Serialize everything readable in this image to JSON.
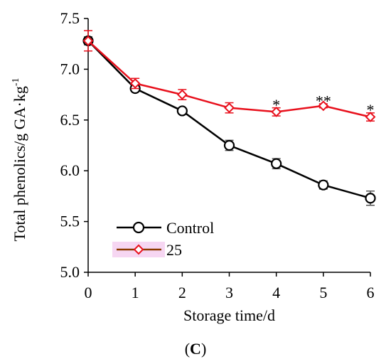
{
  "chart_data": {
    "type": "line",
    "xlabel": "Storage time/d",
    "ylabel_main": "Total phenolics/g GA·kg",
    "ylabel_sup": "-1",
    "xlim": [
      0,
      6
    ],
    "ylim": [
      5.0,
      7.5
    ],
    "x_ticks": [
      "0",
      "1",
      "2",
      "3",
      "4",
      "5",
      "6"
    ],
    "y_ticks": [
      "5.0",
      "5.5",
      "6.0",
      "6.5",
      "7.0",
      "7.5"
    ],
    "x": [
      0,
      1,
      2,
      3,
      4,
      5,
      6
    ],
    "series": [
      {
        "name": "Control",
        "color": "#000000",
        "marker": "circle",
        "values": [
          7.28,
          6.81,
          6.59,
          6.25,
          6.07,
          5.86,
          5.73
        ],
        "errors": [
          0.04,
          0.03,
          0.02,
          0.05,
          0.05,
          0.04,
          0.07
        ]
      },
      {
        "name": "25",
        "color": "#e8101c",
        "marker": "diamond",
        "values": [
          7.28,
          6.86,
          6.75,
          6.62,
          6.58,
          6.64,
          6.53
        ],
        "errors": [
          0.1,
          0.05,
          0.05,
          0.05,
          0.04,
          0.02,
          0.04
        ]
      }
    ],
    "annotations": [
      {
        "x": 4,
        "y": 6.68,
        "text": "*"
      },
      {
        "x": 5,
        "y": 6.72,
        "text": "**"
      },
      {
        "x": 6,
        "y": 6.63,
        "text": "*"
      }
    ],
    "legend_position": "bottom-left",
    "grid": false
  },
  "panel_label": "C"
}
